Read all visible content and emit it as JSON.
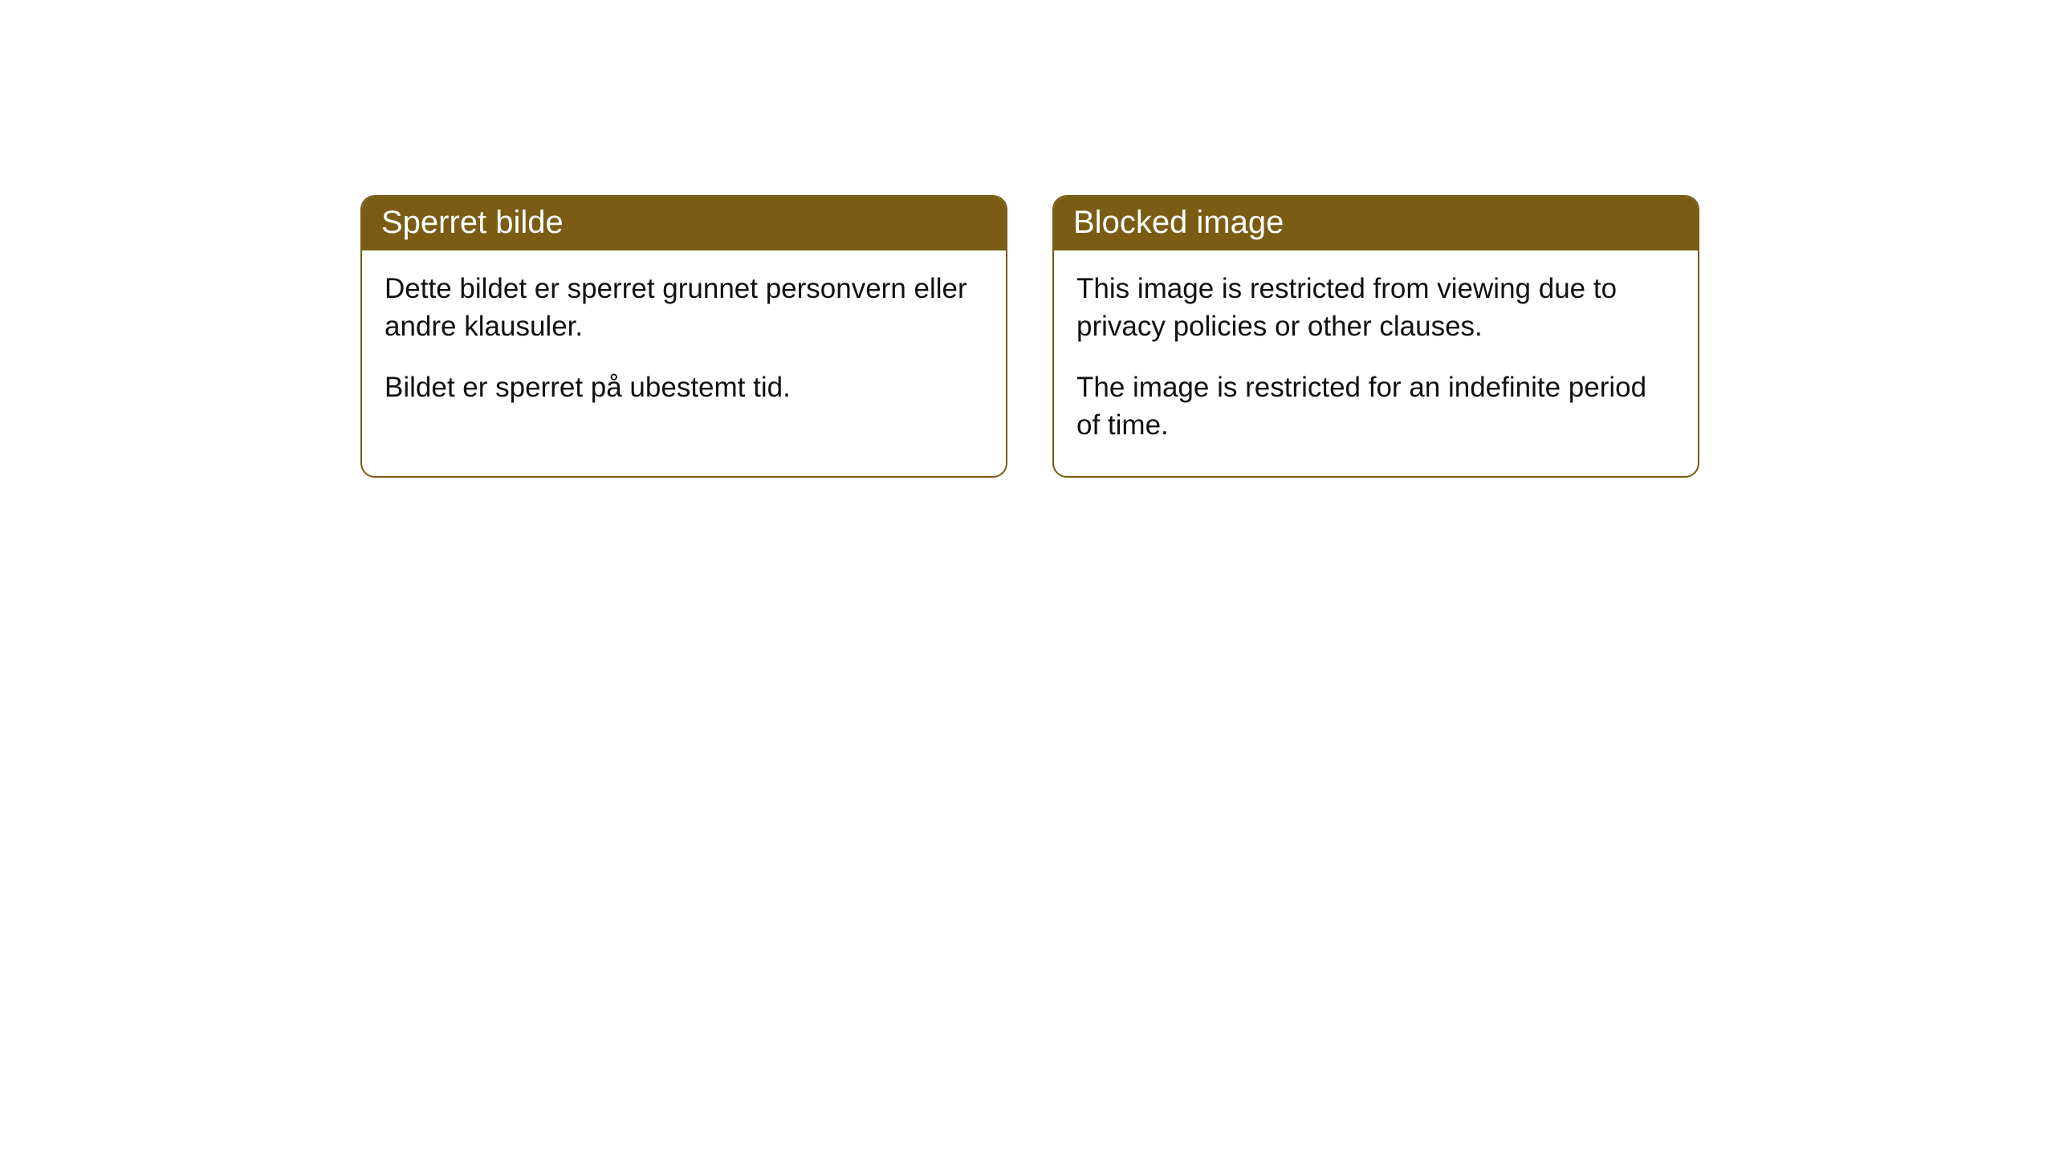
{
  "cards": [
    {
      "title": "Sperret bilde",
      "paragraph1": "Dette bildet er sperret grunnet personvern eller andre klausuler.",
      "paragraph2": "Bildet er sperret på ubestemt tid."
    },
    {
      "title": "Blocked image",
      "paragraph1": "This image is restricted from viewing due to privacy policies or other clauses.",
      "paragraph2": "The image is restricted for an indefinite period of time."
    }
  ],
  "style": {
    "header_bg": "#7a5c14",
    "header_text_color": "#ffffff",
    "border_color": "#7a5c14",
    "body_text_color": "#111111",
    "background_color": "#ffffff",
    "border_radius": 18,
    "header_fontsize": 40,
    "body_fontsize": 35
  }
}
